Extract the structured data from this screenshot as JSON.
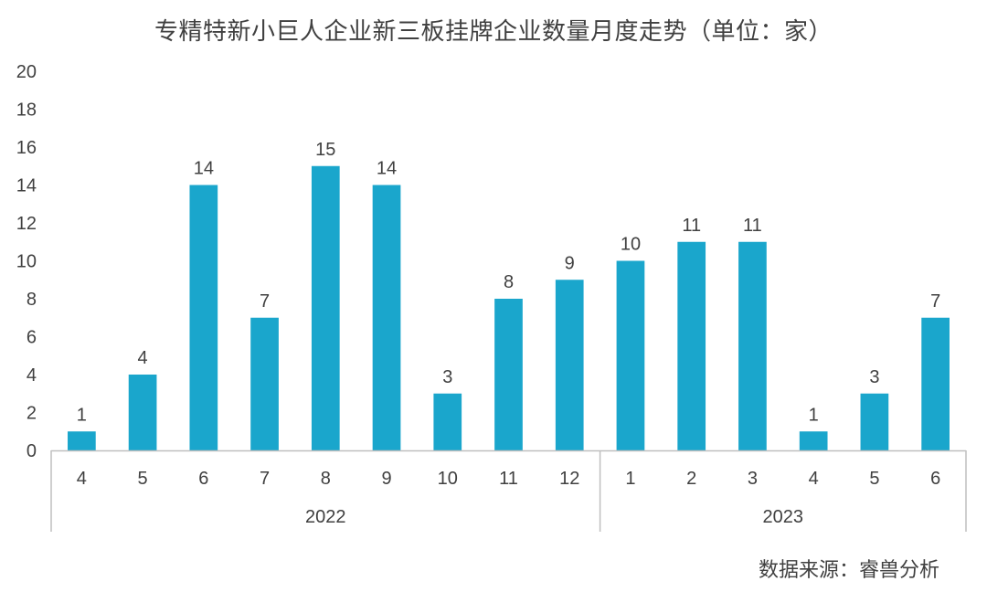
{
  "title": "专精特新小巨人企业新三板挂牌企业数量月度走势（单位：家）",
  "source": "数据来源：睿兽分析",
  "chart_data": {
    "type": "bar",
    "title": "专精特新小巨人企业新三板挂牌企业数量月度走势（单位：家）",
    "categories": [
      "4",
      "5",
      "6",
      "7",
      "8",
      "9",
      "10",
      "11",
      "12",
      "1",
      "2",
      "3",
      "4",
      "5",
      "6"
    ],
    "groups": [
      {
        "label": "2022",
        "count": 9
      },
      {
        "label": "2023",
        "count": 6
      }
    ],
    "values": [
      1,
      4,
      14,
      7,
      15,
      14,
      3,
      8,
      9,
      10,
      11,
      11,
      1,
      3,
      7
    ],
    "ylim": [
      0,
      20
    ],
    "yticks": [
      0,
      2,
      4,
      6,
      8,
      10,
      12,
      14,
      16,
      18,
      20
    ],
    "bar_color": "#1aa6cc",
    "data_labels": true,
    "grid": false,
    "legend": false,
    "xlabel": "",
    "ylabel": ""
  }
}
